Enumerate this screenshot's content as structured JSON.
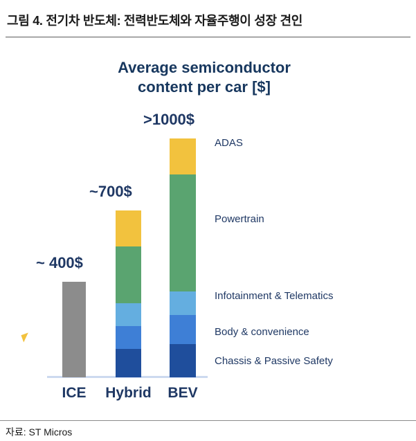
{
  "header": {
    "title": "그림 4. 전기차 반도체: 전력반도체와 자율주행이 성장 견인"
  },
  "chart_data": {
    "type": "bar",
    "stacked": true,
    "title": "Average semiconductor content per car [$]",
    "categories": [
      "ICE",
      "Hybrid",
      "BEV"
    ],
    "segments": [
      "Chassis & Passive Safety",
      "Body & convenience",
      "Infotainment & Telematics",
      "Powertrain",
      "ADAS"
    ],
    "series": [
      {
        "name": "ICE",
        "total_label": "~ 400$",
        "total": 400,
        "stack": [
          {
            "label": "ICE",
            "value": 400,
            "color": "#8c8c8c"
          }
        ]
      },
      {
        "name": "Hybrid",
        "total_label": "~700$",
        "total": 700,
        "stack": [
          {
            "label": "Chassis & Passive Safety",
            "value": 120,
            "color": "#1f4e9c"
          },
          {
            "label": "Body & convenience",
            "value": 95,
            "color": "#3e7fd6"
          },
          {
            "label": "Infotainment & Telematics",
            "value": 95,
            "color": "#64aee0"
          },
          {
            "label": "Powertrain",
            "value": 240,
            "color": "#5aa470"
          },
          {
            "label": "ADAS",
            "value": 150,
            "color": "#f2c23e"
          }
        ]
      },
      {
        "name": "BEV",
        "total_label": ">1000$",
        "total": 1000,
        "stack": [
          {
            "label": "Chassis & Passive Safety",
            "value": 140,
            "color": "#1f4e9c"
          },
          {
            "label": "Body & convenience",
            "value": 120,
            "color": "#3e7fd6"
          },
          {
            "label": "Infotainment & Telematics",
            "value": 100,
            "color": "#64aee0"
          },
          {
            "label": "Powertrain",
            "value": 490,
            "color": "#5aa470"
          },
          {
            "label": "ADAS",
            "value": 150,
            "color": "#f2c23e"
          }
        ]
      }
    ],
    "grid": false,
    "legend_position": "right",
    "accent_color": "#17375e",
    "axis_line_color": "#ccd9ef"
  },
  "footer": {
    "source": "자료: ST Micros"
  }
}
